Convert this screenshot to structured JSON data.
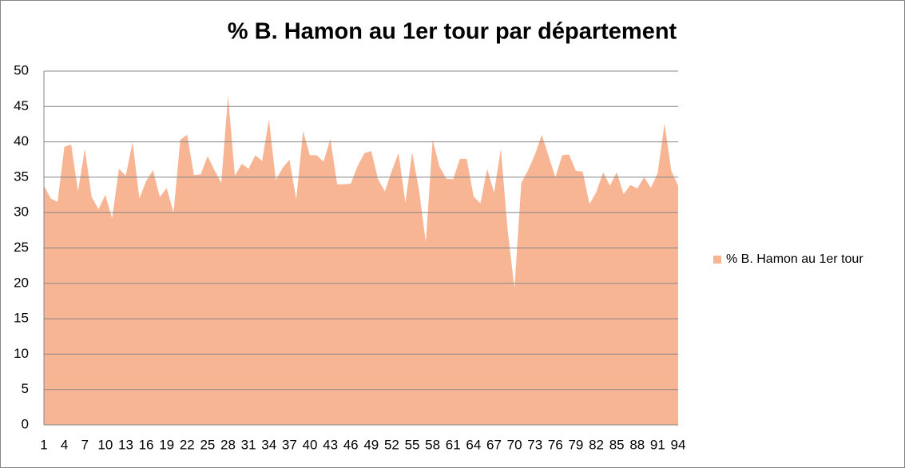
{
  "chart_data": {
    "type": "area",
    "title": "% B. Hamon au 1er tour par département",
    "categories": [
      1,
      null,
      null,
      4,
      null,
      null,
      7,
      null,
      null,
      10,
      null,
      null,
      13,
      null,
      null,
      16,
      null,
      null,
      19,
      null,
      null,
      22,
      null,
      null,
      25,
      null,
      null,
      28,
      null,
      null,
      31,
      null,
      null,
      34,
      null,
      null,
      37,
      null,
      null,
      40,
      null,
      null,
      43,
      null,
      null,
      46,
      null,
      null,
      49,
      null,
      null,
      52,
      null,
      null,
      55,
      null,
      null,
      58,
      null,
      null,
      61,
      null,
      null,
      64,
      null,
      null,
      67,
      null,
      null,
      70,
      null,
      null,
      73,
      null,
      null,
      76,
      null,
      null,
      79,
      null,
      null,
      82,
      null,
      null,
      85,
      null,
      null,
      88,
      null,
      null,
      91,
      null,
      null,
      94
    ],
    "series": [
      {
        "name": "% B. Hamon au 1er tour",
        "color": "#f8b594",
        "values": [
          33.8,
          32,
          31.5,
          39.3,
          39.6,
          33,
          39,
          32.2,
          30.5,
          32.5,
          29.2,
          36.2,
          35.2,
          40,
          32,
          34.5,
          36,
          32.2,
          33.5,
          30,
          40.3,
          41,
          35.3,
          35.4,
          38,
          36,
          34.2,
          46.5,
          35.2,
          36.9,
          36.2,
          38.1,
          37.3,
          43.2,
          34.6,
          36.3,
          37.5,
          31.9,
          41.5,
          38.1,
          38.1,
          37.2,
          40.4,
          34,
          34,
          34.1,
          36.6,
          38.4,
          38.7,
          34.7,
          33,
          35.9,
          38.4,
          31.4,
          38.5,
          33.2,
          25.8,
          40.3,
          36.5,
          34.8,
          34.7,
          37.6,
          37.6,
          32.3,
          31.3,
          36.2,
          32.8,
          39,
          27.5,
          19.3,
          34.2,
          36,
          38.2,
          41,
          38,
          35,
          38.1,
          38.2,
          35.9,
          35.8,
          31.2,
          32.9,
          35.7,
          33.8,
          35.7,
          32.6,
          33.9,
          33.4,
          35,
          33.5,
          35.6,
          42.6,
          35.9,
          33.8
        ]
      }
    ],
    "ylim": [
      0,
      50
    ],
    "yticks": [
      0,
      5,
      10,
      15,
      20,
      25,
      30,
      35,
      40,
      45,
      50
    ],
    "grid": true,
    "legend": "right"
  }
}
